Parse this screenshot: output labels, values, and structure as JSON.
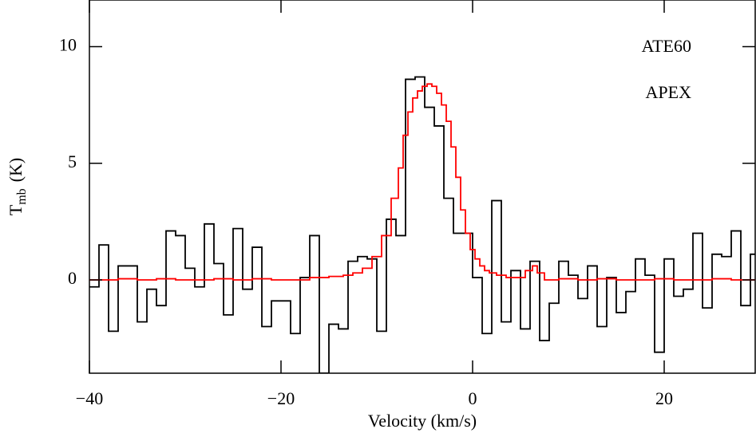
{
  "chart_data": {
    "type": "step",
    "xlabel": "Velocity (km/s)",
    "ylabel": {
      "main": "T",
      "sub": "mb",
      "unit": "(K)"
    },
    "xlim": [
      -40,
      29.5
    ],
    "ylim": [
      -4,
      12
    ],
    "xticks": [
      {
        "value": -40,
        "label": "−40"
      },
      {
        "value": -20,
        "label": "−20"
      },
      0,
      20
    ],
    "yticks": [
      0,
      5,
      10
    ],
    "legend": "upper right",
    "series": [
      {
        "name": "ATE60",
        "color": "#000000",
        "x": [
          -39.5,
          -38.5,
          -37.5,
          -36.5,
          -35.5,
          -34.5,
          -33.5,
          -32.5,
          -31.5,
          -30.5,
          -29.5,
          -28.5,
          -27.5,
          -26.5,
          -25.5,
          -24.5,
          -23.5,
          -22.5,
          -21.5,
          -20.5,
          -19.5,
          -18.5,
          -17.5,
          -16.5,
          -15.5,
          -14.5,
          -13.5,
          -12.5,
          -11.5,
          -10.5,
          -9.5,
          -8.5,
          -7.5,
          -6.5,
          -5.5,
          -4.5,
          -3.5,
          -2.5,
          -1.5,
          -0.5,
          0.5,
          1.5,
          2.5,
          3.5,
          4.5,
          5.5,
          6.5,
          7.5,
          8.5,
          9.5,
          10.5,
          11.5,
          12.5,
          13.5,
          14.5,
          15.5,
          16.5,
          17.5,
          18.5,
          19.5,
          20.5,
          21.5,
          22.5,
          23.5,
          24.5,
          25.5,
          26.5,
          27.5,
          28.5,
          29.5
        ],
        "values": [
          -0.3,
          1.5,
          -2.2,
          0.6,
          0.6,
          -1.8,
          -0.4,
          -1.1,
          2.1,
          1.9,
          0.5,
          -0.3,
          2.4,
          0.7,
          -1.5,
          2.2,
          -0.4,
          1.4,
          -2.0,
          -0.9,
          -0.9,
          -2.3,
          0.1,
          1.9,
          -4.0,
          -1.9,
          -2.1,
          0.8,
          1.0,
          0.9,
          -2.2,
          2.6,
          1.9,
          8.6,
          8.7,
          7.4,
          6.6,
          3.5,
          2.0,
          2.0,
          0.1,
          -2.3,
          3.4,
          -1.8,
          0.4,
          -2.1,
          0.8,
          -2.6,
          -1.0,
          0.8,
          0.2,
          -0.8,
          0.6,
          -2.0,
          0.1,
          -1.4,
          -0.5,
          0.9,
          0.2,
          -3.1,
          0.9,
          -0.7,
          -0.4,
          2.0,
          -1.2,
          1.1,
          1.0,
          2.1,
          -1.1,
          1.1
        ]
      },
      {
        "name": "APEX",
        "color": "#ff0000",
        "x": [
          -40,
          -38,
          -36,
          -34,
          -32,
          -30,
          -28,
          -26,
          -24,
          -22,
          -20,
          -18,
          -16,
          -14,
          -13,
          -12,
          -11,
          -10,
          -9,
          -8,
          -7.5,
          -7,
          -6.5,
          -6,
          -5.5,
          -5,
          -4.5,
          -4,
          -3.5,
          -3,
          -2.5,
          -2,
          -1.5,
          -1,
          -0.5,
          0,
          0.5,
          1,
          1.5,
          2,
          3,
          4,
          5,
          6,
          6.5,
          7,
          8,
          10,
          12,
          14,
          16,
          18,
          20,
          22,
          24,
          26,
          28,
          29.5
        ],
        "values": [
          0,
          0,
          0.05,
          0,
          0.05,
          0,
          0,
          0.05,
          0,
          0.05,
          0,
          0,
          0.1,
          0.15,
          0.2,
          0.3,
          0.5,
          1.0,
          1.9,
          3.5,
          4.8,
          6.2,
          7.2,
          7.8,
          8.1,
          8.3,
          8.4,
          8.3,
          8.0,
          7.5,
          6.8,
          5.7,
          4.4,
          3.0,
          2.0,
          1.3,
          0.9,
          0.6,
          0.4,
          0.3,
          0.2,
          0.1,
          0.1,
          0.4,
          0.6,
          0.3,
          0,
          0.05,
          0,
          0.05,
          0,
          0,
          0.05,
          0,
          0,
          0.05,
          0,
          0
        ]
      }
    ]
  }
}
